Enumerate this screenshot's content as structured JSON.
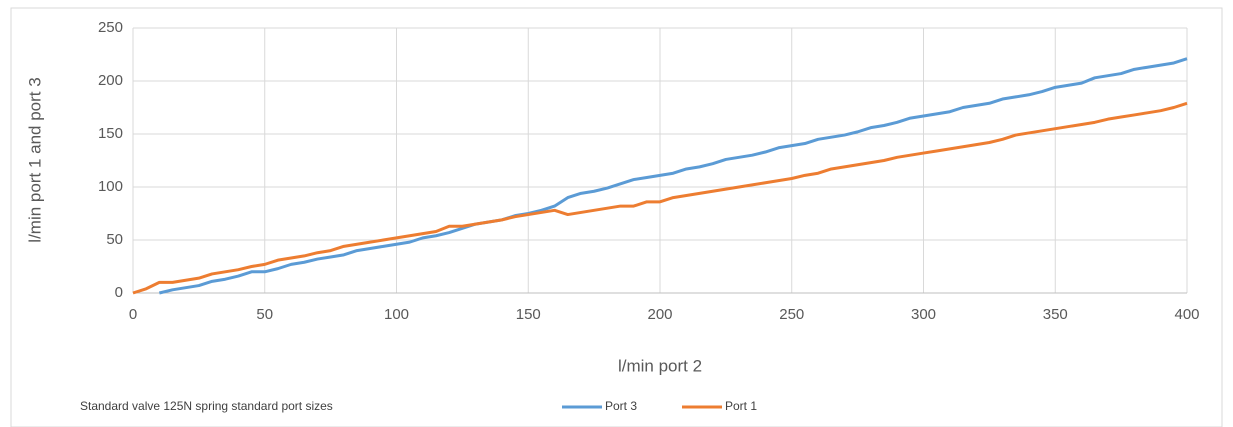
{
  "chart_data": {
    "type": "line",
    "title": "Standard  valve 125N spring standard port sizes",
    "x_label": "l/min port 2",
    "y_label": "l/min port 1 and port 3",
    "x": [
      0,
      5,
      10,
      15,
      20,
      25,
      30,
      35,
      40,
      45,
      50,
      55,
      60,
      65,
      70,
      75,
      80,
      85,
      90,
      95,
      100,
      105,
      110,
      115,
      120,
      125,
      130,
      135,
      140,
      145,
      150,
      155,
      160,
      165,
      170,
      175,
      180,
      185,
      190,
      195,
      200,
      205,
      210,
      215,
      220,
      225,
      230,
      235,
      240,
      245,
      250,
      255,
      260,
      265,
      270,
      275,
      280,
      285,
      290,
      295,
      300,
      305,
      310,
      315,
      320,
      325,
      330,
      335,
      340,
      345,
      350,
      355,
      360,
      365,
      370,
      375,
      380,
      385,
      390,
      395,
      400
    ],
    "series": [
      {
        "name": "Port 3",
        "color": "#5b9bd5",
        "values": [
          null,
          null,
          0,
          3,
          5,
          7,
          11,
          13,
          16,
          20,
          20,
          23,
          27,
          29,
          32,
          34,
          36,
          40,
          42,
          44,
          46,
          48,
          52,
          54,
          57,
          61,
          65,
          67,
          69,
          73,
          75,
          78,
          82,
          90,
          94,
          96,
          99,
          103,
          107,
          109,
          111,
          113,
          117,
          119,
          122,
          126,
          128,
          130,
          133,
          137,
          139,
          141,
          145,
          147,
          149,
          152,
          156,
          158,
          161,
          165,
          167,
          169,
          171,
          175,
          177,
          179,
          183,
          185,
          187,
          190,
          194,
          196,
          198,
          203,
          205,
          207,
          211,
          213,
          215,
          217,
          221
        ]
      },
      {
        "name": "Port 1",
        "color": "#ed7d31",
        "values": [
          0,
          4,
          10,
          10,
          12,
          14,
          18,
          20,
          22,
          25,
          27,
          31,
          33,
          35,
          38,
          40,
          44,
          46,
          48,
          50,
          52,
          54,
          56,
          58,
          63,
          63,
          65,
          67,
          69,
          72,
          74,
          76,
          78,
          74,
          76,
          78,
          80,
          82,
          82,
          86,
          86,
          90,
          92,
          94,
          96,
          98,
          100,
          102,
          104,
          106,
          108,
          111,
          113,
          117,
          119,
          121,
          123,
          125,
          128,
          130,
          132,
          134,
          136,
          138,
          140,
          142,
          145,
          149,
          151,
          153,
          155,
          157,
          159,
          161,
          164,
          166,
          168,
          170,
          172,
          175,
          179
        ]
      }
    ],
    "xlim": [
      0,
      400
    ],
    "xticks": [
      0,
      50,
      100,
      150,
      200,
      250,
      300,
      350,
      400
    ],
    "ylim": [
      0,
      250
    ],
    "yticks": [
      0,
      50,
      100,
      150,
      200,
      250
    ],
    "grid": true
  }
}
